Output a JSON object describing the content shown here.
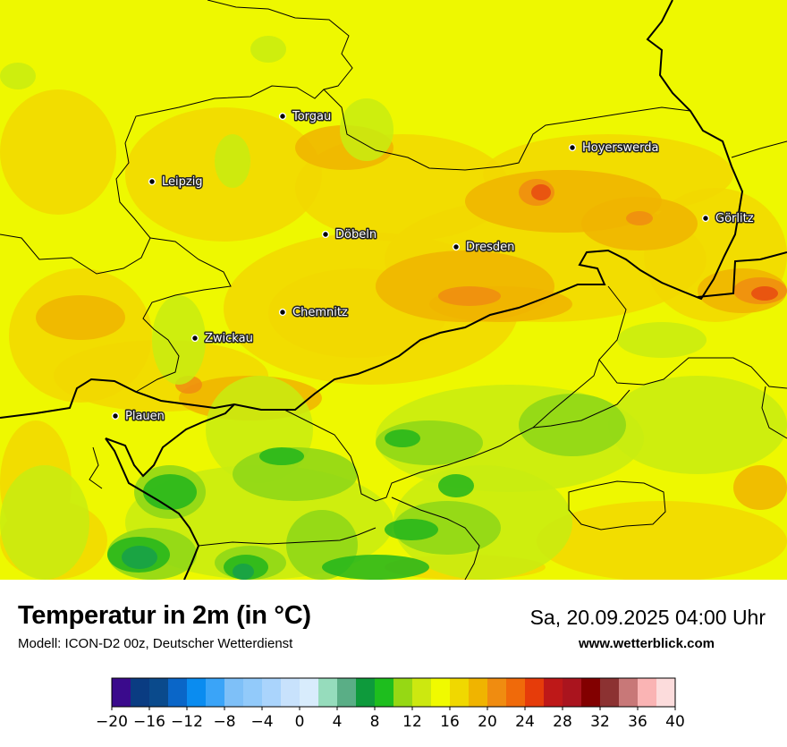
{
  "map": {
    "cities": [
      {
        "name": "Torgau"
      },
      {
        "name": "Leipzig"
      },
      {
        "name": "Hoyerswerda"
      },
      {
        "name": "Görlitz"
      },
      {
        "name": "Döbeln"
      },
      {
        "name": "Dresden"
      },
      {
        "name": "Chemnitz"
      },
      {
        "name": "Zwickau"
      },
      {
        "name": "Plauen"
      }
    ],
    "colors": {
      "base": "#eef800",
      "warm": "#f2d800",
      "warmer": "#f0b400",
      "hot": "#f08c10",
      "green_light": "#c8ec10",
      "green_mid": "#8cd618",
      "green_dark": "#22b51c",
      "green_deep": "#16a04a",
      "red_spot": "#e84a10"
    }
  },
  "header": {
    "title": "Temperatur in 2m (in °C)",
    "subtitle": "Modell: ICON-D2 00z, Deutscher Wetterdienst",
    "datetime": "Sa, 20.09.2025 04:00 Uhr",
    "website": "www.wetterblick.com"
  },
  "legend": {
    "ticks": [
      "−20",
      "−16",
      "−12",
      "−8",
      "−4",
      "0",
      "4",
      "8",
      "12",
      "16",
      "20",
      "24",
      "28",
      "32",
      "36",
      "40"
    ],
    "colors": [
      "#3a0a8c",
      "#0a3c82",
      "#0a4a8c",
      "#0a66c8",
      "#0a8cf0",
      "#3aa4f8",
      "#7ec0f8",
      "#92cafa",
      "#aad4fc",
      "#c8e2fc",
      "#d8ecfc",
      "#96dcbc",
      "#5aae86",
      "#0e9a3c",
      "#1ebe1e",
      "#96d814",
      "#cce810",
      "#f0fa00",
      "#f0d800",
      "#f0b400",
      "#f08c10",
      "#f06a0a",
      "#e63c0a",
      "#be1818",
      "#aa141e",
      "#820000",
      "#8c3232",
      "#c87878",
      "#fab4b4",
      "#fcdcdc"
    ]
  }
}
